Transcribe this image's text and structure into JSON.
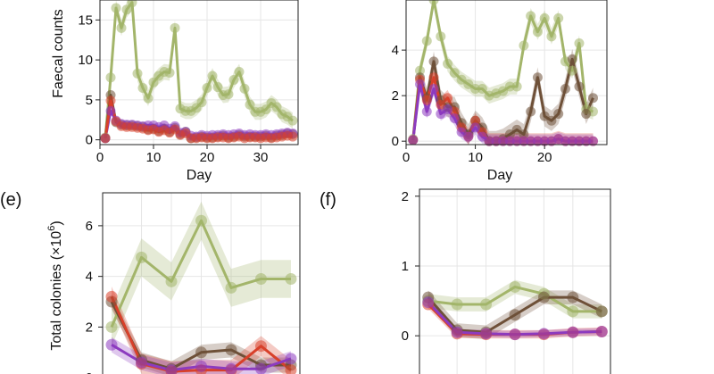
{
  "colors": {
    "green": "#a3b56a",
    "brown": "#6e5038",
    "red": "#d8402a",
    "purple": "#8c3bbf",
    "grid": "#e6e6e6"
  },
  "chart_data": [
    {
      "id": "top-left",
      "type": "line",
      "title": "",
      "xlabel": "Day",
      "ylabel": "Faecal counts",
      "xlim": [
        0,
        37
      ],
      "ylim": [
        -0.6,
        17.5
      ],
      "xticks": [
        0,
        10,
        20,
        30
      ],
      "yticks": [
        0,
        5,
        10,
        15
      ],
      "series": [
        {
          "name": "green",
          "color": "green",
          "band": 1.0,
          "x": [
            1,
            2,
            3,
            4,
            5,
            6,
            7,
            8,
            9,
            10,
            11,
            12,
            13,
            14,
            15,
            16,
            17,
            18,
            19,
            20,
            21,
            22,
            23,
            24,
            25,
            26,
            27,
            28,
            29,
            30,
            31,
            32,
            33,
            34,
            35,
            36
          ],
          "y": [
            0.3,
            7.8,
            16.5,
            14.0,
            16.3,
            17.2,
            8.3,
            6.5,
            5.2,
            7.2,
            8.0,
            8.5,
            8.4,
            14.0,
            3.9,
            3.6,
            3.6,
            4.0,
            4.7,
            6.5,
            8.0,
            6.6,
            5.6,
            5.7,
            7.5,
            8.5,
            6.4,
            4.4,
            3.5,
            3.5,
            3.8,
            4.6,
            4.1,
            3.2,
            2.9,
            2.4
          ]
        },
        {
          "name": "brown",
          "color": "brown",
          "band": 0.3,
          "x": [
            1,
            2,
            3,
            4,
            5,
            6,
            7,
            8,
            9,
            10,
            11,
            12,
            13,
            14,
            15,
            16,
            17,
            18,
            19,
            20,
            21,
            22,
            23,
            24,
            25,
            26,
            27,
            28,
            29,
            30,
            31,
            32,
            33,
            34,
            35,
            36
          ],
          "y": [
            0.2,
            5.6,
            2.2,
            1.9,
            1.8,
            1.8,
            1.7,
            1.6,
            1.3,
            1.4,
            1.1,
            1.4,
            1.0,
            1.5,
            0.7,
            1.0,
            0.2,
            0.3,
            0.4,
            0.3,
            0.3,
            0.4,
            0.5,
            0.3,
            0.4,
            0.6,
            0.4,
            0.4,
            0.4,
            0.4,
            0.5,
            0.3,
            0.5,
            0.6,
            0.8,
            0.7
          ]
        },
        {
          "name": "purple",
          "color": "purple",
          "band": 0.3,
          "x": [
            1,
            2,
            3,
            4,
            5,
            6,
            7,
            8,
            9,
            10,
            11,
            12,
            13,
            14,
            15,
            16,
            17,
            18,
            19,
            20,
            21,
            22,
            23,
            24,
            25,
            26,
            27,
            28,
            29,
            30,
            31,
            32,
            33,
            34,
            35,
            36
          ],
          "y": [
            0.2,
            3.6,
            2.4,
            2.0,
            1.9,
            1.9,
            1.8,
            1.7,
            1.8,
            1.8,
            1.6,
            1.8,
            1.4,
            1.7,
            0.9,
            1.0,
            0.5,
            0.4,
            0.6,
            0.5,
            0.6,
            0.6,
            0.7,
            0.6,
            0.7,
            0.8,
            0.6,
            0.7,
            0.6,
            0.6,
            0.7,
            0.6,
            0.7,
            0.8,
            0.9,
            0.8
          ]
        },
        {
          "name": "red",
          "color": "red",
          "band": 0.3,
          "x": [
            1,
            2,
            3,
            4,
            5,
            6,
            7,
            8,
            9,
            10,
            11,
            12,
            13,
            14,
            15,
            16,
            17,
            18,
            19,
            20,
            21,
            22,
            23,
            24,
            25,
            26,
            27,
            28,
            29,
            30,
            31,
            32,
            33,
            34,
            35,
            36
          ],
          "y": [
            0.2,
            4.9,
            2.3,
            1.7,
            1.6,
            1.6,
            1.5,
            1.4,
            1.2,
            1.3,
            1.0,
            1.2,
            0.9,
            1.3,
            0.6,
            0.8,
            0.2,
            0.2,
            0.3,
            0.2,
            0.2,
            0.3,
            0.3,
            0.2,
            0.3,
            0.4,
            0.2,
            0.3,
            0.3,
            0.2,
            0.3,
            0.2,
            0.3,
            0.4,
            0.5,
            0.4
          ]
        }
      ]
    },
    {
      "id": "top-right",
      "type": "line",
      "title": "",
      "xlabel": "Day",
      "ylabel": "",
      "xlim": [
        0,
        29
      ],
      "ylim": [
        -0.15,
        6.2
      ],
      "xticks": [
        0,
        10,
        20
      ],
      "yticks": [
        0,
        2,
        4
      ],
      "series": [
        {
          "name": "green",
          "color": "green",
          "band": 0.35,
          "x": [
            1,
            2,
            3,
            4,
            5,
            6,
            7,
            8,
            9,
            10,
            11,
            12,
            13,
            14,
            15,
            16,
            17,
            18,
            19,
            20,
            21,
            22,
            23,
            24,
            25,
            26,
            27
          ],
          "y": [
            0.1,
            3.1,
            4.4,
            6.2,
            4.6,
            3.4,
            3.0,
            2.7,
            2.5,
            2.3,
            2.3,
            2.0,
            2.1,
            2.2,
            2.4,
            2.4,
            4.2,
            5.5,
            4.8,
            5.4,
            4.6,
            5.4,
            3.5,
            3.1,
            4.3,
            1.4,
            1.3
          ]
        },
        {
          "name": "brown",
          "color": "brown",
          "band": 0.45,
          "x": [
            1,
            2,
            3,
            4,
            5,
            6,
            7,
            8,
            9,
            10,
            11,
            12,
            13,
            14,
            15,
            16,
            17,
            18,
            19,
            20,
            21,
            22,
            23,
            24,
            25,
            26,
            27
          ],
          "y": [
            0.05,
            2.8,
            1.9,
            3.5,
            1.8,
            1.5,
            1.5,
            0.8,
            0.3,
            0.9,
            0.6,
            0.0,
            0.0,
            0.1,
            0.3,
            0.5,
            0.3,
            1.3,
            2.8,
            1.1,
            0.9,
            1.2,
            2.3,
            3.6,
            2.4,
            1.2,
            1.9
          ]
        },
        {
          "name": "red",
          "color": "red",
          "band": 0.35,
          "x": [
            1,
            2,
            3,
            4,
            5,
            6,
            7,
            8,
            9,
            10,
            11,
            12,
            13,
            14,
            15,
            16,
            17,
            18,
            19,
            20,
            21,
            22,
            23,
            24,
            25,
            26,
            27
          ],
          "y": [
            0.05,
            2.7,
            1.8,
            2.8,
            1.6,
            1.9,
            1.3,
            0.6,
            0.2,
            0.9,
            0.4,
            0.0,
            0.0,
            0.0,
            0.0,
            0.0,
            0.0,
            0.0,
            0.0,
            0.0,
            0.0,
            0.1,
            0.0,
            0.0,
            0.0,
            0.0,
            0.0
          ]
        },
        {
          "name": "purple",
          "color": "purple",
          "band": 0.3,
          "x": [
            1,
            2,
            3,
            4,
            5,
            6,
            7,
            8,
            9,
            10,
            11,
            12,
            13,
            14,
            15,
            16,
            17,
            18,
            19,
            20,
            21,
            22,
            23,
            24,
            25,
            26,
            27
          ],
          "y": [
            0.05,
            2.5,
            1.3,
            2.3,
            1.2,
            1.4,
            1.0,
            0.4,
            0.2,
            0.6,
            0.2,
            0.0,
            0.0,
            0.0,
            0.0,
            0.0,
            0.0,
            0.0,
            0.0,
            0.0,
            0.0,
            0.1,
            0.0,
            0.0,
            0.0,
            0.0,
            0.0
          ]
        }
      ]
    },
    {
      "id": "panel-e",
      "panel": "(e)",
      "type": "line",
      "title": "",
      "xlabel": "",
      "ylabel_prefix": "Total colonies (",
      "ylabel_mult": "×10",
      "ylabel_exp": "6",
      "ylabel_suffix": ")",
      "xlim": [
        0.7,
        7.3
      ],
      "ylim": [
        -0.1,
        7.3
      ],
      "xticks": [],
      "yticks": [
        0,
        2,
        4,
        6
      ],
      "series": [
        {
          "name": "green",
          "color": "green",
          "band": 0.75,
          "x": [
            1,
            2,
            3,
            4,
            5,
            6,
            7
          ],
          "y": [
            2.0,
            4.75,
            3.8,
            6.2,
            3.55,
            3.9,
            3.9
          ]
        },
        {
          "name": "brown",
          "color": "brown",
          "band": 0.3,
          "x": [
            1,
            2,
            3,
            4,
            5,
            6,
            7
          ],
          "y": [
            3.0,
            0.7,
            0.35,
            1.0,
            1.1,
            0.5,
            0.5
          ]
        },
        {
          "name": "red",
          "color": "red",
          "band": 0.4,
          "x": [
            1,
            2,
            3,
            4,
            5,
            6,
            7
          ],
          "y": [
            3.2,
            0.55,
            0.25,
            0.3,
            0.3,
            1.25,
            0.3
          ]
        },
        {
          "name": "purple",
          "color": "purple",
          "band": 0.3,
          "x": [
            1,
            2,
            3,
            4,
            5,
            6,
            7
          ],
          "y": [
            1.3,
            0.6,
            0.3,
            0.45,
            0.35,
            0.35,
            0.75
          ]
        }
      ]
    },
    {
      "id": "panel-f",
      "panel": "(f)",
      "type": "line",
      "title": "",
      "xlabel": "",
      "ylabel": "",
      "xlim": [
        0.7,
        7.3
      ],
      "ylim": [
        -0.65,
        2.1
      ],
      "xticks": [],
      "yticks": [
        0,
        1,
        2
      ],
      "series": [
        {
          "name": "green",
          "color": "green",
          "band": 0.1,
          "x": [
            1,
            2,
            3,
            4,
            5,
            6,
            7
          ],
          "y": [
            0.5,
            0.45,
            0.45,
            0.7,
            0.6,
            0.35,
            0.35
          ]
        },
        {
          "name": "brown",
          "color": "brown",
          "band": 0.1,
          "x": [
            1,
            2,
            3,
            4,
            5,
            6,
            7
          ],
          "y": [
            0.55,
            0.08,
            0.05,
            0.3,
            0.55,
            0.55,
            0.35
          ]
        },
        {
          "name": "red",
          "color": "red",
          "band": 0.06,
          "x": [
            1,
            2,
            3,
            4,
            5,
            6,
            7
          ],
          "y": [
            0.45,
            0.03,
            0.02,
            0.02,
            0.02,
            0.05,
            0.06
          ]
        },
        {
          "name": "purple",
          "color": "purple",
          "band": 0.05,
          "x": [
            1,
            2,
            3,
            4,
            5,
            6,
            7
          ],
          "y": [
            0.48,
            0.05,
            0.03,
            0.02,
            0.03,
            0.05,
            0.06
          ]
        }
      ]
    }
  ]
}
